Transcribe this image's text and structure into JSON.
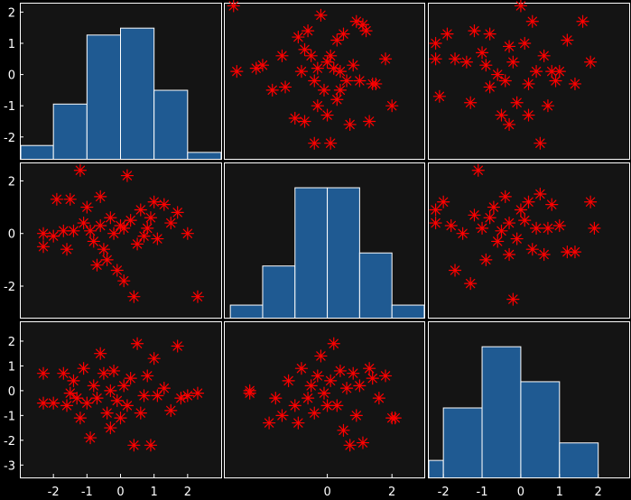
{
  "chart_data": {
    "type": "scatter-matrix",
    "marker_color": "#ff0000",
    "bar_color": "#1f5a92",
    "background_color": "#141414",
    "frame_color": "#ffffff",
    "xlim": [
      [
        -3.0,
        3.0
      ],
      [
        -3.2,
        3.0
      ],
      [
        -2.4,
        2.8
      ]
    ],
    "ylim": [
      [
        -2.7,
        2.3
      ],
      [
        -3.2,
        2.7
      ],
      [
        -3.5,
        2.8
      ]
    ],
    "yticks": [
      [
        2,
        1,
        0,
        -1,
        -2
      ],
      [
        2,
        0,
        -2
      ],
      [
        2,
        1,
        0,
        -1,
        -2,
        -3
      ]
    ],
    "yticklabels": [
      [
        "2",
        "1",
        "0",
        "-1",
        "-2"
      ],
      [
        "2",
        "0",
        "-2"
      ],
      [
        "2",
        "1",
        "0",
        "-1",
        "-2",
        "-3"
      ]
    ],
    "xticks": [
      [
        -2,
        -1,
        0,
        1,
        2
      ],
      [
        0,
        2
      ],
      [
        -2,
        -1,
        0,
        1,
        2
      ]
    ],
    "xticklabels": [
      [
        "-2",
        "-1",
        "0",
        "1",
        "2"
      ],
      [
        "0",
        "2"
      ],
      [
        "-2",
        "-1",
        "0",
        "1",
        "2"
      ]
    ],
    "histograms": [
      {
        "row": 0,
        "col": 0,
        "edges": [
          -3,
          -2,
          -1,
          0,
          1,
          2,
          3
        ],
        "heights": [
          1,
          4,
          9,
          9.5,
          5,
          0.5
        ]
      },
      {
        "row": 1,
        "col": 1,
        "edges": [
          -3,
          -2,
          -1,
          0,
          1,
          2,
          3
        ],
        "heights": [
          1,
          4,
          10,
          10,
          5,
          1
        ]
      },
      {
        "row": 2,
        "col": 2,
        "edges": [
          -3,
          -2,
          -1,
          0,
          1,
          2,
          3
        ],
        "heights": [
          1,
          4,
          7.5,
          5.5,
          2,
          0
        ]
      }
    ],
    "scatter": [
      {
        "row": 0,
        "col": 1,
        "x": [
          -2.9,
          -2.8,
          -2.2,
          -2.0,
          -1.7,
          -1.4,
          -1.3,
          -1.0,
          -0.9,
          -0.8,
          -0.7,
          -0.7,
          -0.6,
          -0.5,
          -0.4,
          -0.4,
          -0.3,
          -0.3,
          -0.2,
          -0.1,
          0.0,
          0.0,
          0.1,
          0.1,
          0.2,
          0.3,
          0.3,
          0.4,
          0.4,
          0.5,
          0.6,
          0.7,
          0.8,
          0.9,
          1.0,
          1.1,
          1.2,
          1.3,
          1.4,
          1.5,
          1.8,
          2.0
        ],
        "y": [
          2.2,
          0.1,
          0.2,
          0.3,
          -0.5,
          0.6,
          -0.4,
          -1.4,
          1.2,
          0.1,
          0.8,
          -1.5,
          1.4,
          0.6,
          -0.2,
          -2.2,
          -1.0,
          0.2,
          1.9,
          -0.5,
          0.4,
          -1.3,
          0.6,
          -2.2,
          0.2,
          1.1,
          -0.8,
          0.1,
          -0.5,
          1.3,
          -0.2,
          -1.6,
          0.3,
          1.7,
          -0.2,
          1.6,
          1.4,
          -1.5,
          -0.3,
          -0.3,
          0.5,
          -1.0
        ]
      },
      {
        "row": 0,
        "col": 2,
        "x": [
          -2.2,
          -2.2,
          -2.1,
          -1.9,
          -1.7,
          -1.4,
          -1.3,
          -1.2,
          -1.0,
          -0.9,
          -0.8,
          -0.8,
          -0.6,
          -0.5,
          -0.4,
          -0.3,
          -0.3,
          -0.2,
          -0.1,
          0.0,
          0.1,
          0.2,
          0.2,
          0.3,
          0.4,
          0.5,
          0.6,
          0.7,
          0.8,
          0.9,
          1.0,
          1.2,
          1.4,
          1.6,
          1.8
        ],
        "y": [
          1.0,
          0.5,
          -0.7,
          1.3,
          0.5,
          0.4,
          -0.9,
          1.4,
          0.7,
          0.3,
          -0.4,
          1.3,
          0.0,
          -1.3,
          -0.2,
          0.9,
          -1.6,
          0.4,
          -0.9,
          2.2,
          1.0,
          -0.3,
          -1.3,
          1.7,
          0.1,
          -2.2,
          0.6,
          -1.0,
          0.1,
          -0.2,
          0.1,
          1.1,
          -0.3,
          1.7,
          0.4
        ]
      },
      {
        "row": 1,
        "col": 0,
        "x": [
          -2.3,
          -2.3,
          -2.0,
          -1.9,
          -1.7,
          -1.6,
          -1.5,
          -1.4,
          -1.2,
          -1.1,
          -1.0,
          -0.9,
          -0.8,
          -0.7,
          -0.6,
          -0.6,
          -0.5,
          -0.4,
          -0.3,
          -0.2,
          -0.1,
          0.0,
          0.1,
          0.1,
          0.2,
          0.3,
          0.4,
          0.5,
          0.6,
          0.7,
          0.8,
          0.9,
          1.0,
          1.1,
          1.3,
          1.5,
          1.7,
          2.0,
          2.3
        ],
        "y": [
          -0.5,
          0.0,
          -0.1,
          1.3,
          0.1,
          -0.6,
          1.3,
          0.1,
          2.4,
          0.4,
          1.0,
          0.1,
          -0.3,
          -1.2,
          1.4,
          0.3,
          -0.6,
          -1.0,
          0.6,
          0.0,
          -1.4,
          0.3,
          0.2,
          -1.8,
          2.2,
          0.5,
          -2.4,
          -0.4,
          0.9,
          -0.1,
          0.2,
          0.6,
          1.2,
          -0.2,
          1.1,
          0.4,
          0.8,
          0.0,
          -2.4
        ]
      },
      {
        "row": 1,
        "col": 2,
        "x": [
          -2.2,
          -2.2,
          -2.0,
          -1.8,
          -1.7,
          -1.5,
          -1.3,
          -1.2,
          -1.1,
          -1.0,
          -0.9,
          -0.8,
          -0.7,
          -0.6,
          -0.5,
          -0.4,
          -0.3,
          -0.3,
          -0.2,
          -0.1,
          0.0,
          0.1,
          0.2,
          0.3,
          0.4,
          0.5,
          0.6,
          0.7,
          0.8,
          1.0,
          1.2,
          1.4,
          1.8,
          1.9
        ],
        "y": [
          0.9,
          0.4,
          1.2,
          0.3,
          -1.4,
          0.0,
          -1.9,
          0.7,
          2.4,
          0.2,
          -1.0,
          0.6,
          1.0,
          -0.3,
          0.1,
          1.4,
          -0.8,
          0.4,
          -2.5,
          -0.2,
          0.9,
          0.5,
          1.2,
          -0.6,
          0.2,
          1.5,
          -0.8,
          0.2,
          1.1,
          0.3,
          -0.7,
          -0.7,
          1.2,
          0.2
        ]
      },
      {
        "row": 2,
        "col": 0,
        "x": [
          -2.3,
          -2.3,
          -2.0,
          -1.7,
          -1.6,
          -1.5,
          -1.4,
          -1.3,
          -1.2,
          -1.1,
          -1.0,
          -0.9,
          -0.8,
          -0.7,
          -0.6,
          -0.5,
          -0.4,
          -0.3,
          -0.3,
          -0.2,
          -0.1,
          0.0,
          0.1,
          0.2,
          0.3,
          0.4,
          0.5,
          0.6,
          0.7,
          0.8,
          0.9,
          1.0,
          1.1,
          1.3,
          1.5,
          1.7,
          1.8,
          2.0,
          2.3
        ],
        "y": [
          0.7,
          -0.5,
          -0.5,
          0.7,
          -0.6,
          -0.1,
          0.4,
          -0.3,
          -1.1,
          0.9,
          -0.5,
          -1.9,
          0.2,
          -0.3,
          1.5,
          0.7,
          -0.9,
          0.0,
          -1.5,
          0.8,
          -0.4,
          -1.1,
          0.2,
          -0.6,
          0.5,
          -2.2,
          1.9,
          -0.9,
          -0.2,
          0.6,
          -2.2,
          1.3,
          -0.2,
          0.1,
          -0.8,
          1.8,
          -0.3,
          -0.2,
          -0.1
        ]
      },
      {
        "row": 2,
        "col": 1,
        "x": [
          -2.4,
          -2.4,
          -1.8,
          -1.6,
          -1.4,
          -1.2,
          -1.0,
          -0.9,
          -0.8,
          -0.6,
          -0.5,
          -0.4,
          -0.3,
          -0.2,
          -0.1,
          0.0,
          0.1,
          0.2,
          0.3,
          0.4,
          0.5,
          0.6,
          0.7,
          0.8,
          0.9,
          1.0,
          1.1,
          1.3,
          1.4,
          1.6,
          1.8,
          2.0,
          2.1
        ],
        "y": [
          -0.1,
          0.0,
          -1.3,
          -0.3,
          -1.0,
          0.4,
          -0.6,
          -1.3,
          0.9,
          -0.3,
          0.2,
          -0.9,
          0.6,
          1.4,
          -0.1,
          -0.6,
          0.4,
          1.9,
          -0.6,
          0.8,
          -1.6,
          0.1,
          -2.2,
          0.7,
          -1.0,
          0.2,
          -2.1,
          0.9,
          0.5,
          -0.3,
          0.6,
          -1.1,
          -1.1
        ]
      }
    ]
  }
}
